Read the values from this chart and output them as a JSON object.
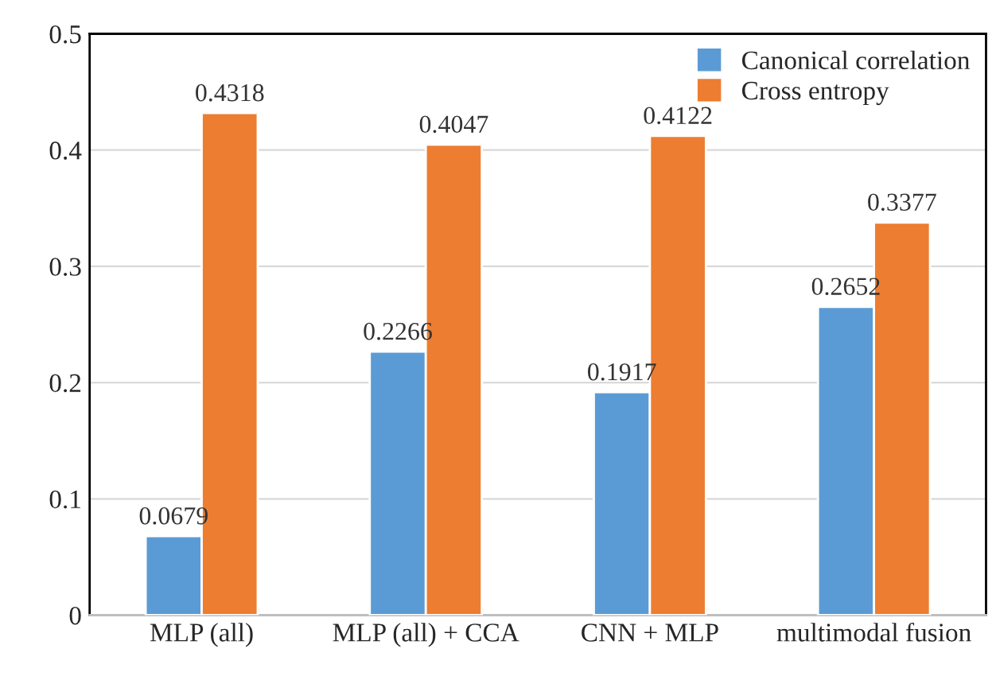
{
  "chart_data": {
    "type": "bar",
    "categories": [
      "MLP (all)",
      "MLP (all) + CCA",
      "CNN + MLP",
      "multimodal fusion"
    ],
    "series": [
      {
        "name": "Canonical correlation",
        "color": "#5b9bd5",
        "values": [
          0.0679,
          0.2266,
          0.1917,
          0.2652
        ]
      },
      {
        "name": "Cross entropy",
        "color": "#ed7d31",
        "values": [
          0.4318,
          0.4047,
          0.4122,
          0.3377
        ]
      }
    ],
    "ylim": [
      0,
      0.5
    ],
    "yticks": [
      {
        "value": 0,
        "label": "0"
      },
      0.1,
      0.2,
      0.3,
      0.4,
      0.5
    ],
    "grid": "y",
    "legend": "top right",
    "data_labels": true
  }
}
